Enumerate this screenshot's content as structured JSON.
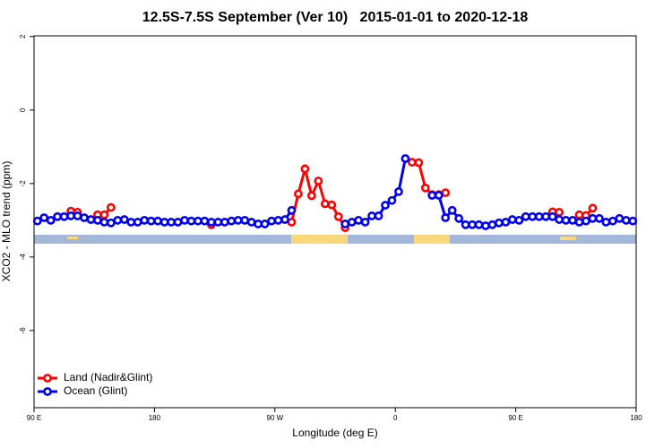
{
  "chart_data": {
    "type": "line",
    "title": "12.5S-7.5S September (Ver 10)   2015-01-01 to 2020-12-18",
    "x_label": "Longitude (deg E)",
    "y_label": "XCO2 - MLO trend (ppm)",
    "xlim": [
      90,
      540
    ],
    "xticks": [
      {
        "value": 90,
        "label": "90 E"
      },
      {
        "value": 180,
        "label": "180"
      },
      {
        "value": 270,
        "label": "90 W"
      },
      {
        "value": 360,
        "label": "0"
      },
      {
        "value": 450,
        "label": "90 E"
      },
      {
        "value": 540,
        "label": "180"
      }
    ],
    "ylim": [
      -8.1,
      2.02
    ],
    "yticks": [
      2,
      0,
      -2,
      -4,
      -6
    ],
    "legend": "bottom-left",
    "series": [
      {
        "name": "Land (Nadir&Glint)",
        "color": "#ff0000",
        "x": [
          117.5,
          122.5,
          127.5,
          137.5,
          142.5,
          147.5,
          152.5,
          222.5,
          227.5,
          282.5,
          287.5,
          292.5,
          297.5,
          302.5,
          307.5,
          312.5,
          317.5,
          322.5,
          327.5,
          372.5,
          377.5,
          382.5,
          387.5,
          392.5,
          397.5,
          402.5,
          477.5,
          482.5,
          487.5,
          497.5,
          502.5,
          507.5
        ],
        "values": [
          -2.75,
          -2.78,
          null,
          -2.85,
          -2.85,
          -2.65,
          null,
          -3.12,
          null,
          -3.05,
          -2.28,
          -1.6,
          -2.33,
          -1.93,
          -2.55,
          -2.58,
          -2.9,
          -3.2,
          null,
          -1.42,
          -1.43,
          -2.12,
          -2.3,
          -2.3,
          -2.25,
          null,
          -2.77,
          -2.78,
          null,
          -2.85,
          -2.87,
          -2.67
        ]
      },
      {
        "name": "Ocean (Glint)",
        "color": "#0000ee",
        "x": [
          92.5,
          97.5,
          102.5,
          107.5,
          112.5,
          117.5,
          122.5,
          127.5,
          132.5,
          137.5,
          142.5,
          147.5,
          152.5,
          157.5,
          162.5,
          167.5,
          172.5,
          177.5,
          182.5,
          187.5,
          192.5,
          197.5,
          202.5,
          207.5,
          212.5,
          217.5,
          222.5,
          227.5,
          232.5,
          237.5,
          242.5,
          247.5,
          252.5,
          257.5,
          262.5,
          267.5,
          272.5,
          277.5,
          282.5,
          287.5,
          322.5,
          327.5,
          332.5,
          337.5,
          342.5,
          347.5,
          352.5,
          357.5,
          362.5,
          367.5,
          372.5,
          387.5,
          392.5,
          397.5,
          402.5,
          407.5,
          412.5,
          417.5,
          422.5,
          427.5,
          432.5,
          437.5,
          442.5,
          447.5,
          452.5,
          457.5,
          462.5,
          467.5,
          472.5,
          477.5,
          482.5,
          487.5,
          492.5,
          497.5,
          502.5,
          507.5,
          512.5,
          517.5,
          522.5,
          527.5,
          532.5,
          537.5
        ],
        "values": [
          -3.02,
          -2.93,
          -3.0,
          -2.9,
          -2.9,
          -2.88,
          -2.88,
          -2.93,
          -2.98,
          -3.0,
          -3.05,
          -3.07,
          -3.0,
          -2.98,
          -3.05,
          -3.05,
          -3.0,
          -3.02,
          -3.02,
          -3.05,
          -3.05,
          -3.05,
          -3.0,
          -3.02,
          -3.02,
          -3.02,
          -3.05,
          -3.05,
          -3.05,
          -3.02,
          -3.0,
          -3.0,
          -3.05,
          -3.1,
          -3.1,
          -3.02,
          -3.0,
          -2.98,
          -2.73,
          null,
          -3.1,
          -3.05,
          -3.0,
          -3.05,
          -2.88,
          -2.88,
          -2.59,
          -2.46,
          -2.22,
          -1.32,
          null,
          -2.32,
          -2.32,
          -2.93,
          -2.73,
          -2.95,
          -3.12,
          -3.12,
          -3.12,
          -3.15,
          -3.12,
          -3.07,
          -3.05,
          -2.98,
          -3.0,
          -2.9,
          -2.9,
          -2.9,
          -2.9,
          -2.9,
          -2.98,
          -3.0,
          -3.0,
          -3.05,
          -3.02,
          -2.95,
          -2.95,
          -3.05,
          -3.02,
          -2.95,
          -3.0,
          -3.02
        ]
      }
    ]
  }
}
